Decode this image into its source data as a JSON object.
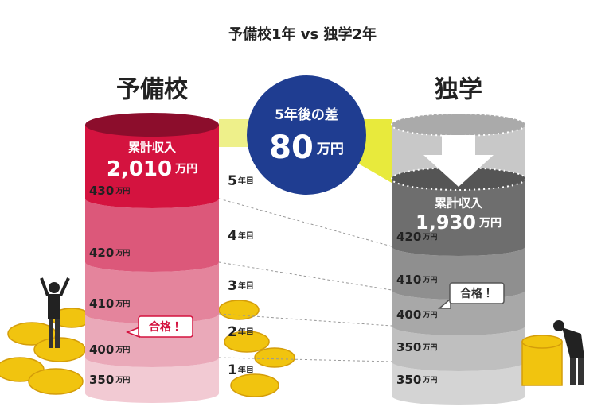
{
  "title": "予備校1年 vs 独学2年",
  "center": {
    "label": "5年後の差",
    "value": "80",
    "unit": "万円"
  },
  "left": {
    "heading": "予備校",
    "total": {
      "label": "累計収入",
      "value": "2,010",
      "unit": "万円"
    },
    "layers": [
      {
        "value": "430",
        "unit": "万円"
      },
      {
        "value": "420",
        "unit": "万円"
      },
      {
        "value": "410",
        "unit": "万円"
      },
      {
        "value": "400",
        "unit": "万円"
      },
      {
        "value": "350",
        "unit": "万円"
      }
    ],
    "badge": "合格！"
  },
  "right": {
    "heading": "独学",
    "total": {
      "label": "累計収入",
      "value": "1,930",
      "unit": "万円"
    },
    "layers": [
      {
        "value": "420",
        "unit": "万円"
      },
      {
        "value": "410",
        "unit": "万円"
      },
      {
        "value": "400",
        "unit": "万円"
      },
      {
        "value": "350",
        "unit": "万円"
      },
      {
        "value": "350",
        "unit": "万円"
      }
    ],
    "badge": "合格！"
  },
  "years": [
    {
      "number": "5",
      "suffix": "年目"
    },
    {
      "number": "4",
      "suffix": "年目"
    },
    {
      "number": "3",
      "suffix": "年目"
    },
    {
      "number": "2",
      "suffix": "年目"
    },
    {
      "number": "1",
      "suffix": "年目"
    }
  ]
}
